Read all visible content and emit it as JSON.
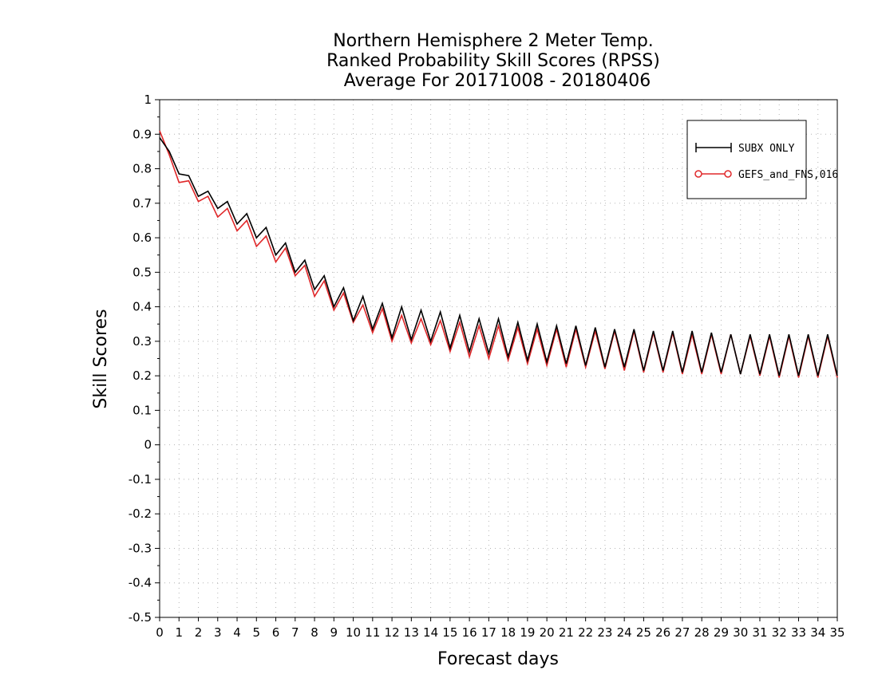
{
  "chart_data": {
    "type": "line",
    "title": [
      "Northern Hemisphere 2 Meter Temp.",
      "Ranked Probability Skill Scores (RPSS)",
      "Average For 20171008 - 20180406"
    ],
    "xlabel": "Forecast days",
    "ylabel": "Skill Scores",
    "xlim": [
      0,
      35
    ],
    "ylim": [
      -0.5,
      1
    ],
    "xticks": [
      0,
      1,
      2,
      3,
      4,
      5,
      6,
      7,
      8,
      9,
      10,
      11,
      12,
      13,
      14,
      15,
      16,
      17,
      18,
      19,
      20,
      21,
      22,
      23,
      24,
      25,
      26,
      27,
      28,
      29,
      30,
      31,
      32,
      33,
      34,
      35
    ],
    "yticks": [
      -0.5,
      -0.4,
      -0.3,
      -0.2,
      -0.1,
      0,
      0.1,
      0.2,
      0.3,
      0.4,
      0.5,
      0.6,
      0.7,
      0.8,
      0.9,
      1
    ],
    "ytick_labels": [
      "-0.5",
      "-0.4",
      "-0.3",
      "-0.2",
      "-0.1",
      "0",
      "0.1",
      "0.2",
      "0.3",
      "0.4",
      "0.5",
      "0.6",
      "0.7",
      "0.8",
      "0.9",
      "1"
    ],
    "grid": true,
    "legend_position": "top-right",
    "series": [
      {
        "name": "SUBX ONLY",
        "color": "#000000",
        "marker": "plus",
        "x": [
          0,
          0.5,
          1,
          1.5,
          2,
          2.5,
          3,
          3.5,
          4,
          4.5,
          5,
          5.5,
          6,
          6.5,
          7,
          7.5,
          8,
          8.5,
          9,
          9.5,
          10,
          10.5,
          11,
          11.5,
          12,
          12.5,
          13,
          13.5,
          14,
          14.5,
          15,
          15.5,
          16,
          16.5,
          17,
          17.5,
          18,
          18.5,
          19,
          19.5,
          20,
          20.5,
          21,
          21.5,
          22,
          22.5,
          23,
          23.5,
          24,
          24.5,
          25,
          25.5,
          26,
          26.5,
          27,
          27.5,
          28,
          28.5,
          29,
          29.5,
          30,
          30.5,
          31,
          31.5,
          32,
          32.5,
          33,
          33.5,
          34,
          34.5,
          35
        ],
        "values": [
          0.89,
          0.85,
          0.785,
          0.78,
          0.72,
          0.735,
          0.685,
          0.705,
          0.64,
          0.67,
          0.6,
          0.63,
          0.55,
          0.585,
          0.5,
          0.535,
          0.45,
          0.49,
          0.4,
          0.455,
          0.36,
          0.43,
          0.335,
          0.41,
          0.31,
          0.4,
          0.305,
          0.39,
          0.3,
          0.385,
          0.28,
          0.375,
          0.27,
          0.365,
          0.265,
          0.365,
          0.255,
          0.355,
          0.245,
          0.35,
          0.24,
          0.345,
          0.235,
          0.345,
          0.23,
          0.34,
          0.225,
          0.335,
          0.225,
          0.335,
          0.215,
          0.33,
          0.215,
          0.33,
          0.21,
          0.33,
          0.21,
          0.325,
          0.21,
          0.32,
          0.205,
          0.32,
          0.205,
          0.32,
          0.2,
          0.32,
          0.2,
          0.32,
          0.2,
          0.32,
          0.2
        ]
      },
      {
        "name": "GEFS_and_FNS,016",
        "color": "#e0282a",
        "marker": "circle",
        "x": [
          0,
          0.5,
          1,
          1.5,
          2,
          2.5,
          3,
          3.5,
          4,
          4.5,
          5,
          5.5,
          6,
          6.5,
          7,
          7.5,
          8,
          8.5,
          9,
          9.5,
          10,
          10.5,
          11,
          11.5,
          12,
          12.5,
          13,
          13.5,
          14,
          14.5,
          15,
          15.5,
          16,
          16.5,
          17,
          17.5,
          18,
          18.5,
          19,
          19.5,
          20,
          20.5,
          21,
          21.5,
          22,
          22.5,
          23,
          23.5,
          24,
          24.5,
          25,
          25.5,
          26,
          26.5,
          27,
          27.5,
          28,
          28.5,
          29,
          29.5,
          30,
          30.5,
          31,
          31.5,
          32,
          32.5,
          33,
          33.5,
          34,
          34.5,
          35
        ],
        "values": [
          0.91,
          0.84,
          0.76,
          0.765,
          0.705,
          0.72,
          0.66,
          0.685,
          0.62,
          0.65,
          0.575,
          0.605,
          0.53,
          0.57,
          0.49,
          0.52,
          0.43,
          0.475,
          0.39,
          0.44,
          0.355,
          0.405,
          0.325,
          0.395,
          0.3,
          0.375,
          0.295,
          0.365,
          0.29,
          0.36,
          0.27,
          0.355,
          0.255,
          0.345,
          0.25,
          0.345,
          0.245,
          0.34,
          0.235,
          0.335,
          0.23,
          0.335,
          0.225,
          0.335,
          0.225,
          0.33,
          0.22,
          0.33,
          0.215,
          0.33,
          0.21,
          0.325,
          0.21,
          0.325,
          0.205,
          0.32,
          0.205,
          0.32,
          0.205,
          0.32,
          0.205,
          0.315,
          0.2,
          0.315,
          0.195,
          0.315,
          0.195,
          0.315,
          0.195,
          0.315,
          0.195
        ]
      }
    ]
  }
}
